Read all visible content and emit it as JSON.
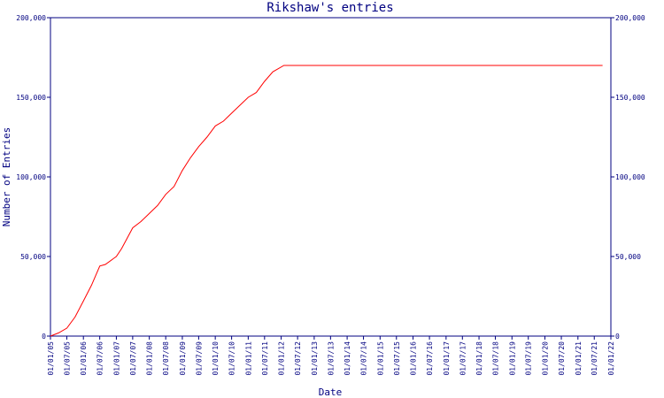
{
  "chart_data": {
    "type": "line",
    "title": "Rikshaw's entries",
    "xlabel": "Date",
    "ylabel": "Number of Entries",
    "ylim": [
      0,
      200000
    ],
    "xlim": [
      "2005-01-01",
      "2022-01-01"
    ],
    "grid": false,
    "yticks": [
      0,
      50000,
      100000,
      150000,
      200000
    ],
    "ytick_labels": [
      "0",
      "50,000",
      "100,000",
      "150,000",
      "200,000"
    ],
    "xtick_labels": [
      "01/01/05",
      "01/07/05",
      "01/01/06",
      "01/07/06",
      "01/01/07",
      "01/07/07",
      "01/01/08",
      "01/07/08",
      "01/01/09",
      "01/07/09",
      "01/01/10",
      "01/07/10",
      "01/01/11",
      "01/07/11",
      "01/01/12",
      "01/07/12",
      "01/01/13",
      "01/07/13",
      "01/01/14",
      "01/07/14",
      "01/01/15",
      "01/07/15",
      "01/01/16",
      "01/07/16",
      "01/01/17",
      "01/07/17",
      "01/01/18",
      "01/07/18",
      "01/01/19",
      "01/07/19",
      "01/01/20",
      "01/07/20",
      "01/01/21",
      "01/07/21",
      "01/01/22"
    ],
    "series": [
      {
        "color": "#ff0000",
        "points": [
          [
            "2005-01-01",
            0
          ],
          [
            "2005-04-01",
            2000
          ],
          [
            "2005-07-01",
            5000
          ],
          [
            "2005-10-01",
            12000
          ],
          [
            "2006-01-01",
            22000
          ],
          [
            "2006-04-01",
            32000
          ],
          [
            "2006-07-01",
            44000
          ],
          [
            "2006-09-01",
            45000
          ],
          [
            "2007-01-01",
            50000
          ],
          [
            "2007-03-01",
            55000
          ],
          [
            "2007-07-01",
            68000
          ],
          [
            "2007-10-01",
            72000
          ],
          [
            "2008-01-01",
            77000
          ],
          [
            "2008-04-01",
            82000
          ],
          [
            "2008-07-01",
            89000
          ],
          [
            "2008-10-01",
            94000
          ],
          [
            "2009-01-01",
            104000
          ],
          [
            "2009-04-01",
            112000
          ],
          [
            "2009-07-01",
            119000
          ],
          [
            "2009-10-01",
            125000
          ],
          [
            "2010-01-01",
            132000
          ],
          [
            "2010-04-01",
            135000
          ],
          [
            "2010-07-01",
            140000
          ],
          [
            "2010-10-01",
            145000
          ],
          [
            "2011-01-01",
            150000
          ],
          [
            "2011-04-01",
            153000
          ],
          [
            "2011-07-01",
            160000
          ],
          [
            "2011-10-01",
            166000
          ],
          [
            "2012-02-01",
            170000
          ],
          [
            "2021-10-01",
            170000
          ]
        ]
      }
    ]
  }
}
